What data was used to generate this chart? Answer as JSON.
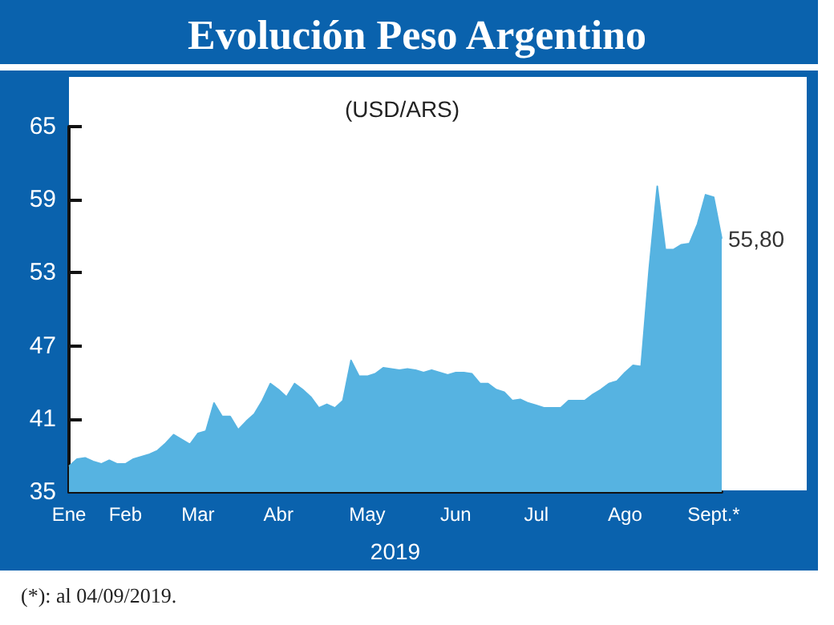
{
  "chart_data": {
    "type": "area",
    "title": "Evolución Peso Argentino",
    "subtitle": "(USD/ARS)",
    "xlabel": "2019",
    "categories": [
      "Ene",
      null,
      null,
      null,
      null,
      null,
      null,
      "Feb",
      null,
      null,
      null,
      null,
      null,
      null,
      null,
      null,
      "Mar",
      null,
      null,
      null,
      null,
      null,
      null,
      null,
      null,
      null,
      "Abr",
      null,
      null,
      null,
      null,
      null,
      null,
      null,
      null,
      null,
      null,
      "May",
      null,
      null,
      null,
      null,
      null,
      null,
      null,
      null,
      null,
      null,
      "Jun",
      null,
      null,
      null,
      null,
      null,
      null,
      null,
      null,
      null,
      "Jul",
      null,
      null,
      null,
      null,
      null,
      null,
      null,
      null,
      null,
      null,
      "Ago",
      null,
      null,
      null,
      null,
      null,
      null,
      null,
      null,
      null,
      null,
      "Sept.*",
      null
    ],
    "values": [
      37.1,
      37.7,
      37.8,
      37.5,
      37.3,
      37.6,
      37.3,
      37.3,
      37.7,
      37.9,
      38.1,
      38.4,
      39.0,
      39.7,
      39.3,
      38.9,
      39.8,
      40.0,
      42.3,
      41.2,
      41.2,
      40.1,
      40.8,
      41.4,
      42.5,
      43.9,
      43.4,
      42.8,
      43.9,
      43.4,
      42.8,
      41.9,
      42.2,
      41.9,
      42.5,
      45.8,
      44.5,
      44.5,
      44.7,
      45.2,
      45.1,
      45.0,
      45.1,
      45.0,
      44.8,
      45.0,
      44.8,
      44.6,
      44.8,
      44.8,
      44.7,
      43.9,
      43.9,
      43.4,
      43.2,
      42.5,
      42.6,
      42.3,
      42.1,
      41.9,
      41.9,
      41.9,
      42.5,
      42.5,
      42.5,
      43.0,
      43.4,
      43.9,
      44.1,
      44.8,
      45.4,
      45.3,
      53.3,
      60.1,
      54.9,
      54.9,
      55.3,
      55.4,
      57.0,
      59.4,
      59.2,
      55.8
    ],
    "value_labels": [
      null,
      null,
      null,
      null,
      null,
      null,
      null,
      null,
      null,
      null,
      null,
      null,
      null,
      null,
      null,
      null,
      null,
      null,
      null,
      null,
      null,
      null,
      null,
      null,
      null,
      null,
      null,
      null,
      null,
      null,
      null,
      null,
      null,
      null,
      null,
      null,
      null,
      null,
      null,
      null,
      null,
      null,
      null,
      null,
      null,
      null,
      null,
      null,
      null,
      null,
      null,
      null,
      null,
      null,
      null,
      null,
      null,
      null,
      null,
      null,
      null,
      null,
      null,
      null,
      null,
      null,
      null,
      null,
      null,
      null,
      null,
      null,
      null,
      null,
      null,
      null,
      null,
      null,
      null,
      null,
      null,
      "55,80"
    ],
    "color": "#56b3e1",
    "ylim": [
      35,
      65
    ],
    "yticks": [
      35,
      41,
      47,
      53,
      59,
      65
    ],
    "annotations": [
      "(*): al 04/09/2019."
    ]
  }
}
